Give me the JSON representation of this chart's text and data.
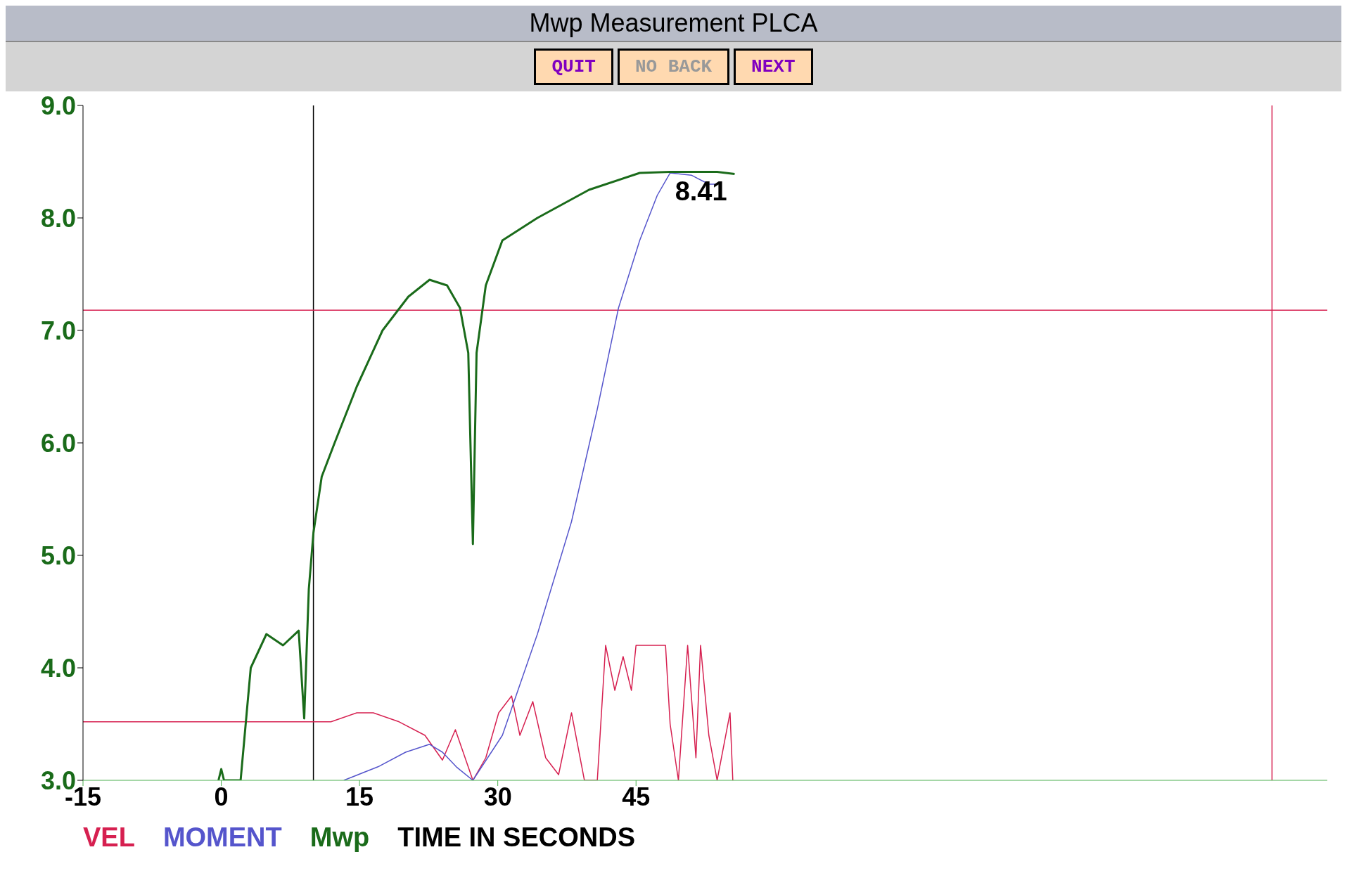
{
  "chart_data": {
    "type": "line",
    "title": "Mwp Measurement PLCA",
    "xlabel": "TIME IN SECONDS",
    "annotations": [
      "QUIT",
      "NO BACK",
      "NEXT",
      {
        "text": "8.41",
        "x": 49,
        "y": 8.41
      }
    ],
    "xlim": [
      -15,
      120
    ],
    "xticks": [
      -15,
      0,
      15,
      30,
      45
    ],
    "ylim": [
      3,
      9
    ],
    "yticks": [
      {
        "value": 9,
        "label": "9.0"
      },
      {
        "value": 8,
        "label": "8.0"
      },
      {
        "value": 7,
        "label": "7.0"
      },
      {
        "value": 6,
        "label": "6.0"
      },
      {
        "value": 5,
        "label": "5.0"
      },
      {
        "value": 4,
        "label": "4.0"
      },
      {
        "value": 3,
        "label": "3.0"
      }
    ],
    "legend": "bottom",
    "marker": "none",
    "ref_lines": [
      {
        "axis": "x",
        "value": 10,
        "color": "#000000"
      },
      {
        "axis": "x",
        "value": 114,
        "color": "#d62050"
      },
      {
        "axis": "y",
        "value": 7.18,
        "color": "#d62050"
      }
    ],
    "series": [
      {
        "name": "VEL",
        "color": "#d62050",
        "x": [
          -15,
          10,
          11.9,
          14.7,
          16.5,
          19.3,
          22.1,
          24,
          25.4,
          27.3,
          28.7,
          30.1,
          31.5,
          32.4,
          33.8,
          35.2,
          36.6,
          38,
          39.4,
          40.8,
          41.7,
          42.7,
          43.6,
          44.5,
          45,
          48.2,
          48.7,
          49.6,
          50.6,
          51.5,
          52,
          52.9,
          53.8,
          55.2,
          55.5
        ],
        "values": [
          3.52,
          3.52,
          3.52,
          3.6,
          3.6,
          3.52,
          3.4,
          3.18,
          3.45,
          3.0,
          3.2,
          3.6,
          3.75,
          3.4,
          3.7,
          3.2,
          3.05,
          3.6,
          3.0,
          3.0,
          4.2,
          3.8,
          4.1,
          3.8,
          4.2,
          4.2,
          3.5,
          3.0,
          4.2,
          3.2,
          4.2,
          3.4,
          3.0,
          3.6,
          3.0
        ]
      },
      {
        "name": "MOMENT",
        "color": "#5555cc",
        "x": [
          13.3,
          17,
          20,
          22.6,
          24,
          25.5,
          27.3,
          30.5,
          34.3,
          38,
          40.8,
          43.1,
          45.4,
          47.3,
          48.7,
          51,
          52.9,
          53.8
        ],
        "values": [
          3.0,
          3.12,
          3.25,
          3.32,
          3.25,
          3.12,
          3.0,
          3.4,
          4.3,
          5.3,
          6.3,
          7.2,
          7.8,
          8.2,
          8.4,
          8.38,
          8.3,
          8.3
        ]
      },
      {
        "name": "Mwp",
        "color": "#1a6b1a",
        "x": [
          -0.3,
          0,
          0.3,
          2.1,
          3.2,
          4.9,
          6.7,
          8.4,
          9.0,
          9.5,
          10,
          10.9,
          12.3,
          14.7,
          17.5,
          20.3,
          22.6,
          24.5,
          25.9,
          26.8,
          27.3,
          27.7,
          28.7,
          30.5,
          34.3,
          39.9,
          45.4,
          48.7,
          53.8,
          55.7
        ],
        "values": [
          3.0,
          3.1,
          3.0,
          3.0,
          4.0,
          4.3,
          4.2,
          4.33,
          3.55,
          4.7,
          5.2,
          5.7,
          6.0,
          6.5,
          7.0,
          7.3,
          7.45,
          7.4,
          7.2,
          6.8,
          5.1,
          6.8,
          7.4,
          7.8,
          8.0,
          8.25,
          8.4,
          8.41,
          8.41,
          8.39
        ]
      }
    ]
  }
}
